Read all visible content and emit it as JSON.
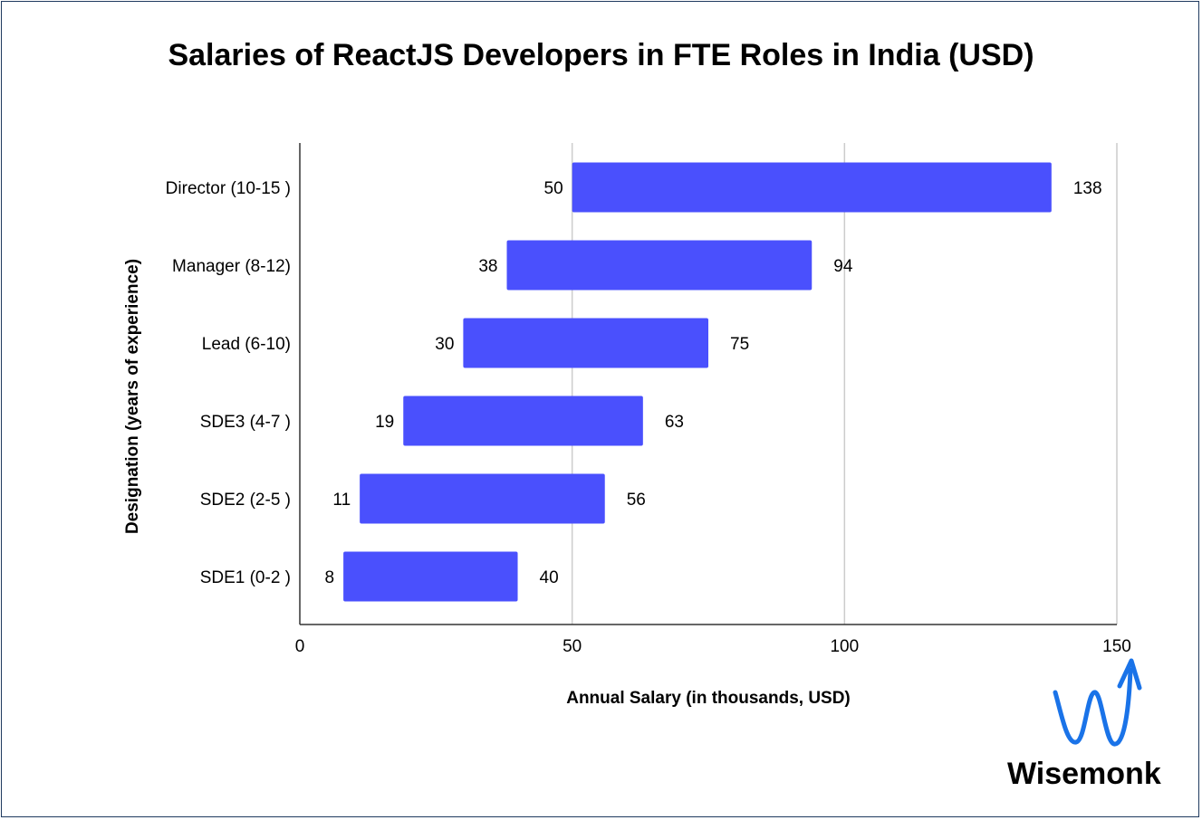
{
  "chart_data": {
    "type": "bar",
    "orientation": "horizontal",
    "subtype": "floating-range",
    "title": "Salaries of ReactJS Developers in FTE Roles in India (USD)",
    "xlabel": "Annual Salary (in thousands, USD)",
    "ylabel": "Designation (years of experience)",
    "xlim": [
      0,
      150
    ],
    "xticks": [
      0,
      50,
      100,
      150
    ],
    "xtick_labels": [
      "0",
      "50",
      "100",
      "150"
    ],
    "grid": true,
    "legend": "none",
    "bar_color": "#4a50fd",
    "categories": [
      "Director (10-15 )",
      "Manager (8-12)",
      "Lead (6-10)",
      "SDE3 (4-7 )",
      "SDE2 (2-5 )",
      "SDE1 (0-2 )"
    ],
    "min_values": [
      50,
      38,
      30,
      19,
      11,
      8
    ],
    "max_values": [
      138,
      94,
      75,
      63,
      56,
      40
    ],
    "min_labels": [
      "50",
      "38",
      "30",
      "19",
      "11",
      "8"
    ],
    "max_labels": [
      "138",
      "94",
      "75",
      "63",
      "56",
      "40"
    ]
  },
  "logo": {
    "text": "Wisemonk",
    "icon": "wave-arrow-icon",
    "color": "#1a73e8"
  }
}
